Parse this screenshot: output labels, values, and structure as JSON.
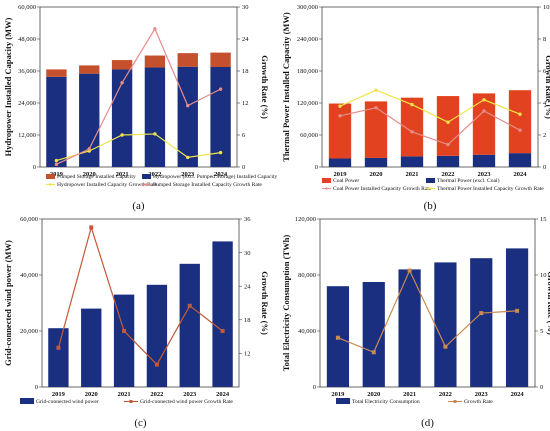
{
  "chart_data": [
    {
      "panel_label": "(a)",
      "type": "bar",
      "stacked": true,
      "categories": [
        "2019",
        "2020",
        "2021",
        "2022",
        "2023",
        "2024"
      ],
      "ylabel": "Hydropower Installed Capacity (MW)",
      "y2label": "Growth Rate (%)",
      "ylim": [
        0,
        60000
      ],
      "y2lim": [
        0,
        30
      ],
      "yticks": [
        0,
        12000,
        24000,
        36000,
        48000,
        60000
      ],
      "y2ticks": [
        0,
        6,
        12,
        18,
        24,
        30
      ],
      "yticklabels": [
        "0",
        "12,000",
        "24,000",
        "36,000",
        "48,000",
        "60,000"
      ],
      "y2ticklabels": [
        "0",
        "6",
        "12",
        "18",
        "24",
        "30"
      ],
      "series": [
        {
          "name": "Pumped Storage Installed Capacity",
          "kind": "bar",
          "axis": "left",
          "color": "#c4502e",
          "values": [
            2800,
            3100,
            3500,
            4500,
            5100,
            5400
          ]
        },
        {
          "name": "Hydropower (excl. Pumped Storage) Installed Capacity",
          "kind": "bar",
          "axis": "left",
          "color": "#1a2f80",
          "values": [
            33800,
            35000,
            36600,
            37300,
            37600,
            37500
          ]
        },
        {
          "name": "Hydropower Installed Capacity Growth Rate",
          "kind": "line",
          "axis": "right",
          "color": "#f0e44a",
          "marker": "circle",
          "values": [
            1.2,
            3.0,
            6.0,
            6.2,
            1.8,
            2.7
          ]
        },
        {
          "name": "Pumped Storage Installed Capacity Growth Rate",
          "kind": "line",
          "axis": "right",
          "color": "#e58d8d",
          "marker": "circle",
          "values": [
            0.5,
            3.4,
            15.8,
            25.9,
            11.5,
            14.6
          ]
        }
      ]
    },
    {
      "panel_label": "(b)",
      "type": "bar",
      "stacked": true,
      "categories": [
        "2019",
        "2020",
        "2021",
        "2022",
        "2023",
        "2024"
      ],
      "ylabel": "Thermal Power Installed Capacity (MW)",
      "y2label": "Growth Rate (%)",
      "ylim": [
        0,
        300000
      ],
      "y2lim": [
        0,
        10
      ],
      "yticks": [
        0,
        60000,
        120000,
        180000,
        240000,
        300000
      ],
      "y2ticks": [
        0,
        2,
        4,
        6,
        8,
        10
      ],
      "yticklabels": [
        "0",
        "60,000",
        "120,000",
        "180,000",
        "240,000",
        "300,000"
      ],
      "y2ticklabels": [
        "0",
        "2",
        "4",
        "6",
        "8",
        "10"
      ],
      "series": [
        {
          "name": "Coal Power",
          "kind": "bar",
          "axis": "left",
          "color": "#e2421f",
          "values": [
            103000,
            106000,
            110000,
            112000,
            115000,
            118000
          ]
        },
        {
          "name": "Thermal Power (excl. Coal)",
          "kind": "bar",
          "axis": "left",
          "color": "#1a2f80",
          "values": [
            16000,
            17000,
            20000,
            21000,
            23000,
            26000
          ]
        },
        {
          "name": "Coal Power Installed Capacity Growth Rate",
          "kind": "line",
          "axis": "right",
          "color": "#e58d8d",
          "marker": "circle",
          "values": [
            3.2,
            3.7,
            2.2,
            1.4,
            3.5,
            2.3
          ]
        },
        {
          "name": "Thermal Power Installed Capacity Growth Rate",
          "kind": "line",
          "axis": "right",
          "color": "#f0e44a",
          "marker": "circle",
          "values": [
            3.8,
            4.8,
            3.9,
            2.8,
            4.2,
            3.3
          ]
        }
      ]
    },
    {
      "panel_label": "(c)",
      "type": "bar",
      "categories": [
        "2019",
        "2020",
        "2021",
        "2022",
        "2023",
        "2024"
      ],
      "ylabel": "Grid-connected wind power (MW)",
      "y2label": "Growth Rate (%)",
      "ylim": [
        0,
        60000
      ],
      "y2lim": [
        6,
        36
      ],
      "yticks": [
        0,
        20000,
        40000,
        60000
      ],
      "y2ticks": [
        12,
        18,
        24,
        30,
        36
      ],
      "yticklabels": [
        "0",
        "20,000",
        "40,000",
        "60,000"
      ],
      "y2ticklabels": [
        "12",
        "18",
        "24",
        "30",
        "36"
      ],
      "series": [
        {
          "name": "Grid-connected wind power",
          "kind": "bar",
          "axis": "left",
          "color": "#1a2f80",
          "values": [
            21000,
            28000,
            33000,
            36500,
            44000,
            52000
          ]
        },
        {
          "name": "Grid-connected wind power Growth Rate",
          "kind": "line",
          "axis": "right",
          "color": "#c05a38",
          "marker": "square",
          "values": [
            13.0,
            34.5,
            16.0,
            10.0,
            20.5,
            16.0
          ]
        }
      ]
    },
    {
      "panel_label": "(d)",
      "type": "bar",
      "categories": [
        "2019",
        "2020",
        "2021",
        "2022",
        "2023",
        "2024"
      ],
      "ylabel": "Total Electricity Consumption (TWh)",
      "y2label": "Growth Rate (%)",
      "ylim": [
        0,
        120000
      ],
      "y2lim": [
        0,
        15
      ],
      "yticks": [
        0,
        40000,
        80000,
        120000
      ],
      "y2ticks": [
        0,
        5,
        10,
        15
      ],
      "yticklabels": [
        "0",
        "40,000",
        "80,000",
        "120,000"
      ],
      "y2ticklabels": [
        "0",
        "5",
        "10",
        "15"
      ],
      "series": [
        {
          "name": "Total Electricity Consumption",
          "kind": "bar",
          "axis": "left",
          "color": "#1a2f80",
          "values": [
            72000,
            75000,
            84000,
            89000,
            92000,
            99000
          ]
        },
        {
          "name": "Growth Rate",
          "kind": "line",
          "axis": "right",
          "color": "#c98a53",
          "marker": "square",
          "values": [
            4.4,
            3.1,
            10.4,
            3.6,
            6.6,
            6.8
          ]
        }
      ]
    }
  ]
}
